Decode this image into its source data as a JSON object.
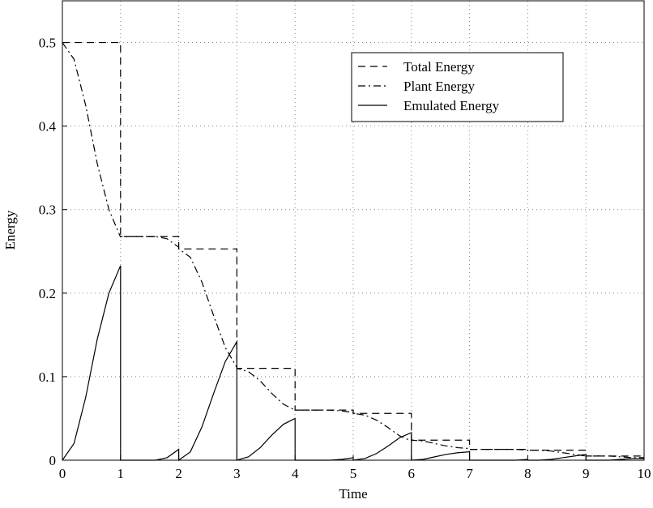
{
  "chart_data": {
    "type": "line",
    "xlabel": "Time",
    "ylabel": "Energy",
    "xlim": [
      0,
      10
    ],
    "ylim": [
      0,
      0.55
    ],
    "xticks": [
      0,
      1,
      2,
      3,
      4,
      5,
      6,
      7,
      8,
      9,
      10
    ],
    "yticks": [
      0,
      0.1,
      0.2,
      0.3,
      0.4,
      0.5
    ],
    "grid": true,
    "legend": "upper right",
    "series": [
      {
        "name": "Total Energy",
        "color": "#000000",
        "style": "dashed",
        "x": [
          0,
          1,
          1,
          2,
          2,
          3,
          3,
          4,
          4,
          5,
          5,
          6,
          6,
          7,
          7,
          8,
          8,
          9,
          9,
          10
        ],
        "values": [
          0.5,
          0.5,
          0.268,
          0.268,
          0.253,
          0.253,
          0.11,
          0.11,
          0.06,
          0.06,
          0.056,
          0.056,
          0.024,
          0.024,
          0.013,
          0.013,
          0.012,
          0.012,
          0.005,
          0.005
        ]
      },
      {
        "name": "Plant Energy",
        "color": "#000000",
        "style": "dashdot",
        "x": [
          0,
          0.2,
          0.4,
          0.6,
          0.8,
          1,
          1,
          1.2,
          1.4,
          1.6,
          1.8,
          2,
          2,
          2.2,
          2.4,
          2.6,
          2.8,
          3,
          3,
          3.2,
          3.4,
          3.6,
          3.8,
          4,
          4,
          4.2,
          4.4,
          4.6,
          4.8,
          5,
          5,
          5.2,
          5.4,
          5.6,
          5.8,
          6,
          6,
          6.2,
          6.4,
          6.6,
          6.8,
          7,
          7,
          7.2,
          7.4,
          7.6,
          7.8,
          8,
          8,
          8.2,
          8.4,
          8.6,
          8.8,
          9,
          9,
          9.2,
          9.4,
          9.6,
          9.8,
          10
        ],
        "values": [
          0.5,
          0.48,
          0.425,
          0.355,
          0.3,
          0.267,
          0.268,
          0.268,
          0.268,
          0.268,
          0.265,
          0.255,
          0.253,
          0.243,
          0.213,
          0.173,
          0.135,
          0.111,
          0.11,
          0.106,
          0.095,
          0.08,
          0.067,
          0.06,
          0.06,
          0.06,
          0.06,
          0.06,
          0.059,
          0.057,
          0.056,
          0.054,
          0.048,
          0.039,
          0.029,
          0.023,
          0.024,
          0.023,
          0.02,
          0.017,
          0.015,
          0.014,
          0.013,
          0.013,
          0.013,
          0.013,
          0.013,
          0.012,
          0.012,
          0.012,
          0.011,
          0.009,
          0.007,
          0.005,
          0.005,
          0.005,
          0.005,
          0.004,
          0.003,
          0.003
        ]
      },
      {
        "name": "Emulated Energy",
        "color": "#000000",
        "style": "solid",
        "x": [
          0,
          0.2,
          0.4,
          0.6,
          0.8,
          1,
          1,
          1.2,
          1.4,
          1.6,
          1.8,
          2,
          2,
          2.2,
          2.4,
          2.6,
          2.8,
          3,
          3,
          3.2,
          3.4,
          3.6,
          3.8,
          4,
          4,
          4.2,
          4.4,
          4.6,
          4.8,
          5,
          5,
          5.2,
          5.4,
          5.6,
          5.8,
          6,
          6,
          6.2,
          6.4,
          6.6,
          6.8,
          7,
          7,
          7.2,
          7.4,
          7.6,
          7.8,
          8,
          8,
          8.2,
          8.4,
          8.6,
          8.8,
          9,
          9,
          9.2,
          9.4,
          9.6,
          9.8,
          10
        ],
        "values": [
          0,
          0.02,
          0.075,
          0.145,
          0.2,
          0.233,
          0,
          0,
          0,
          0,
          0.003,
          0.013,
          0,
          0.01,
          0.04,
          0.08,
          0.118,
          0.142,
          0,
          0.004,
          0.015,
          0.03,
          0.043,
          0.05,
          0,
          0,
          0,
          0,
          0.001,
          0.003,
          0,
          0.002,
          0.008,
          0.017,
          0.027,
          0.033,
          0,
          0.001,
          0.004,
          0.007,
          0.009,
          0.01,
          0,
          0,
          0,
          0,
          0,
          0.001,
          0,
          0,
          0.001,
          0.003,
          0.005,
          0.007,
          0,
          0,
          0,
          0.001,
          0.002,
          0.002
        ]
      }
    ]
  }
}
